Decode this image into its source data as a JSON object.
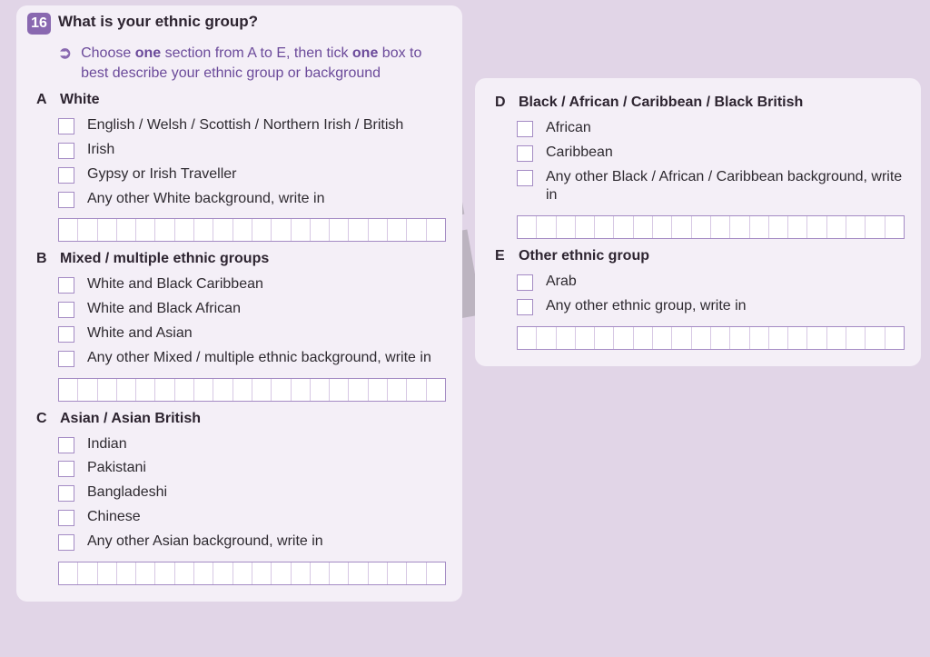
{
  "watermark": "Speci",
  "question": {
    "number": "16",
    "title": "What is your ethnic group?",
    "instruction_pre": "Choose ",
    "instruction_bold1": "one",
    "instruction_mid": " section from A to E, then tick ",
    "instruction_bold2": "one",
    "instruction_post": " box to best describe your ethnic group or background"
  },
  "writein_cells": 20,
  "colors": {
    "page_bg": "#e1d5e7",
    "card_bg": "#f4eff7",
    "accent": "#8968b0",
    "instruction_text": "#6b4a9a",
    "checkbox_border": "#a48bc4",
    "cell_divider": "#d7c8e4",
    "text": "#2d2430"
  },
  "sections_left": [
    {
      "letter": "A",
      "title": "White",
      "options": [
        "English / Welsh / Scottish / Northern Irish / British",
        "Irish",
        "Gypsy or Irish Traveller",
        "Any other White background, write in"
      ],
      "writein": true
    },
    {
      "letter": "B",
      "title": "Mixed / multiple ethnic groups",
      "options": [
        "White and Black Caribbean",
        "White and Black African",
        "White and Asian",
        "Any other Mixed / multiple ethnic background, write in"
      ],
      "writein": true
    },
    {
      "letter": "C",
      "title": "Asian / Asian British",
      "options": [
        "Indian",
        "Pakistani",
        "Bangladeshi",
        "Chinese",
        "Any other Asian background, write in"
      ],
      "writein": true
    }
  ],
  "sections_right": [
    {
      "letter": "D",
      "title": "Black / African / Caribbean / Black British",
      "options": [
        "African",
        "Caribbean",
        "Any other Black / African / Caribbean background, write in"
      ],
      "writein": true
    },
    {
      "letter": "E",
      "title": "Other ethnic group",
      "options": [
        "Arab",
        "Any other ethnic group, write in"
      ],
      "writein": true
    }
  ]
}
